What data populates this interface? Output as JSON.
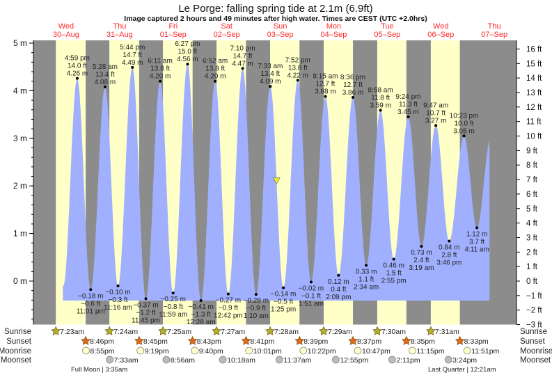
{
  "title": "Le Porge: falling  spring tide at 2.1m (6.9ft)",
  "subtitle": "Image captured 2 hours and 49 minutes after high water. Times are CEST (UTC +2.0hrs)",
  "colors": {
    "night": "#8c8c8c",
    "day": "#ffffc8",
    "tide": "#a0b0ff",
    "day_label": "#ff2a2a",
    "sunrise": "#b0b030",
    "sunset": "#e06820",
    "moonrise": "#ffffc8",
    "moonset": "#bcbcb4",
    "marker": "#e8e830"
  },
  "chart_data": {
    "type": "area",
    "title": "Le Porge: falling  spring tide at 2.1m (6.9ft)",
    "ylim_m": [
      -0.914,
      5
    ],
    "left_axis_ticks": [
      "5 m",
      "4 m",
      "3 m",
      "2 m",
      "1 m",
      "0 m"
    ],
    "left_axis_values": [
      5,
      4,
      3,
      2,
      1,
      0
    ],
    "right_axis_ticks": [
      "16 ft",
      "15 ft",
      "14 ft",
      "13 ft",
      "12 ft",
      "11 ft",
      "10 ft",
      "9 ft",
      "8 ft",
      "7 ft",
      "6 ft",
      "5 ft",
      "4 ft",
      "3 ft",
      "2 ft",
      "1 ft",
      "0 ft",
      "−1 ft",
      "−2 ft",
      "−3 ft"
    ],
    "right_axis_values": [
      16,
      15,
      14,
      13,
      12,
      11,
      10,
      9,
      8,
      7,
      6,
      5,
      4,
      3,
      2,
      1,
      0,
      -1,
      -2,
      -3
    ],
    "days": [
      {
        "name": "Wed",
        "date": "30–Aug"
      },
      {
        "name": "Thu",
        "date": "31–Aug"
      },
      {
        "name": "Fri",
        "date": "01–Sep"
      },
      {
        "name": "Sat",
        "date": "02–Sep"
      },
      {
        "name": "Sun",
        "date": "03–Sep"
      },
      {
        "name": "Mon",
        "date": "04–Sep"
      },
      {
        "name": "Tue",
        "date": "05–Sep"
      },
      {
        "name": "Wed",
        "date": "06–Sep"
      },
      {
        "name": "Thu",
        "date": "07–Sep"
      }
    ],
    "extremes": [
      {
        "type": "high",
        "day": 0,
        "time": "4:59 pm",
        "m": "4.26 m",
        "ft": "14.0 ft",
        "value": 4.26
      },
      {
        "type": "low",
        "day": 0,
        "time": "11:01 pm",
        "m": "−0.18 m",
        "ft": "−0.6 ft",
        "value": -0.18
      },
      {
        "type": "high",
        "day": 1,
        "time": "5:28 am",
        "m": "4.08 m",
        "ft": "13.4 ft",
        "value": 4.08
      },
      {
        "type": "low",
        "day": 1,
        "time": "11:16 am",
        "m": "−0.10 m",
        "ft": "−0.3 ft",
        "value": -0.1
      },
      {
        "type": "high",
        "day": 1,
        "time": "5:44 pm",
        "m": "4.49 m",
        "ft": "14.7 ft",
        "value": 4.49
      },
      {
        "type": "low",
        "day": 1,
        "time": "11:45 pm",
        "m": "−0.37 m",
        "ft": "−1.2 ft",
        "value": -0.37
      },
      {
        "type": "high",
        "day": 2,
        "time": "6:11 am",
        "m": "4.20 m",
        "ft": "13.8 ft",
        "value": 4.2
      },
      {
        "type": "low",
        "day": 2,
        "time": "11:59 am",
        "m": "−0.25 m",
        "ft": "−0.8 ft",
        "value": -0.25
      },
      {
        "type": "high",
        "day": 2,
        "time": "6:27 pm",
        "m": "4.56 m",
        "ft": "15.0 ft",
        "value": 4.56
      },
      {
        "type": "low",
        "day": 3,
        "time": "12:28 am",
        "m": "−0.41 m",
        "ft": "−1.3 ft",
        "value": -0.41
      },
      {
        "type": "high",
        "day": 3,
        "time": "6:52 am",
        "m": "4.20 m",
        "ft": "13.8 ft",
        "value": 4.2
      },
      {
        "type": "low",
        "day": 3,
        "time": "12:42 pm",
        "m": "−0.27 m",
        "ft": "−0.9 ft",
        "value": -0.27
      },
      {
        "type": "high",
        "day": 3,
        "time": "7:10 pm",
        "m": "4.47 m",
        "ft": "14.7 ft",
        "value": 4.47
      },
      {
        "type": "low",
        "day": 4,
        "time": "1:10 am",
        "m": "−0.28 m",
        "ft": "−0.9 ft",
        "value": -0.28
      },
      {
        "type": "high",
        "day": 4,
        "time": "7:33 am",
        "m": "4.09 m",
        "ft": "13.4 ft",
        "value": 4.09
      },
      {
        "type": "low",
        "day": 4,
        "time": "1:25 pm",
        "m": "−0.14 m",
        "ft": "−0.5 ft",
        "value": -0.14
      },
      {
        "type": "high",
        "day": 4,
        "time": "7:52 pm",
        "m": "4.22 m",
        "ft": "13.8 ft",
        "value": 4.22
      },
      {
        "type": "low",
        "day": 5,
        "time": "1:51 am",
        "m": "−0.02 m",
        "ft": "−0.1 ft",
        "value": -0.02
      },
      {
        "type": "high",
        "day": 5,
        "time": "8:15 am",
        "m": "3.88 m",
        "ft": "12.7 ft",
        "value": 3.88
      },
      {
        "type": "low",
        "day": 5,
        "time": "2:09 pm",
        "m": "0.12 m",
        "ft": "0.4 ft",
        "value": 0.12
      },
      {
        "type": "high",
        "day": 5,
        "time": "8:36 pm",
        "m": "3.86 m",
        "ft": "12.7 ft",
        "value": 3.86
      },
      {
        "type": "low",
        "day": 6,
        "time": "2:34 am",
        "m": "0.33 m",
        "ft": "1.1 ft",
        "value": 0.33
      },
      {
        "type": "high",
        "day": 6,
        "time": "8:58 am",
        "m": "3.59 m",
        "ft": "11.8 ft",
        "value": 3.59
      },
      {
        "type": "low",
        "day": 6,
        "time": "2:55 pm",
        "m": "0.46 m",
        "ft": "1.5 ft",
        "value": 0.46
      },
      {
        "type": "high",
        "day": 6,
        "time": "9:24 pm",
        "m": "3.45 m",
        "ft": "11.3 ft",
        "value": 3.45
      },
      {
        "type": "low",
        "day": 7,
        "time": "3:19 am",
        "m": "0.73 m",
        "ft": "2.4 ft",
        "value": 0.73
      },
      {
        "type": "high",
        "day": 7,
        "time": "9:47 am",
        "m": "3.27 m",
        "ft": "10.7 ft",
        "value": 3.27
      },
      {
        "type": "low",
        "day": 7,
        "time": "3:46 pm",
        "m": "0.84 m",
        "ft": "2.8 ft",
        "value": 0.84
      },
      {
        "type": "high",
        "day": 7,
        "time": "10:23 pm",
        "m": "3.05 m",
        "ft": "10.0 ft",
        "value": 3.05
      },
      {
        "type": "low",
        "day": 8,
        "time": "4:11 am",
        "m": "1.12 m",
        "ft": "3.7 ft",
        "value": 1.12
      }
    ],
    "current": {
      "day": 4,
      "time": "10:22 am",
      "value": 2.1
    }
  },
  "almanac": {
    "row_labels": {
      "sunrise": "Sunrise",
      "sunset": "Sunset",
      "moonrise": "Moonrise",
      "moonset": "Moonset"
    },
    "sunrise": [
      {
        "day": 0,
        "time": "7:23am"
      },
      {
        "day": 1,
        "time": "7:24am"
      },
      {
        "day": 2,
        "time": "7:25am"
      },
      {
        "day": 3,
        "time": "7:27am"
      },
      {
        "day": 4,
        "time": "7:28am"
      },
      {
        "day": 5,
        "time": "7:29am"
      },
      {
        "day": 6,
        "time": "7:30am"
      },
      {
        "day": 7,
        "time": "7:31am"
      }
    ],
    "sunset": [
      {
        "day": 0,
        "time": "8:46pm"
      },
      {
        "day": 1,
        "time": "8:45pm"
      },
      {
        "day": 2,
        "time": "8:43pm"
      },
      {
        "day": 3,
        "time": "8:41pm"
      },
      {
        "day": 4,
        "time": "8:39pm"
      },
      {
        "day": 5,
        "time": "8:37pm"
      },
      {
        "day": 6,
        "time": "8:35pm"
      },
      {
        "day": 7,
        "time": "8:33pm"
      }
    ],
    "moonrise": [
      {
        "day": 0,
        "time": "8:55pm"
      },
      {
        "day": 1,
        "time": "9:19pm"
      },
      {
        "day": 2,
        "time": "9:40pm"
      },
      {
        "day": 3,
        "time": "10:01pm"
      },
      {
        "day": 4,
        "time": "10:22pm"
      },
      {
        "day": 5,
        "time": "10:47pm"
      },
      {
        "day": 6,
        "time": "11:15pm"
      },
      {
        "day": 7,
        "time": "11:51pm"
      }
    ],
    "moonset": [
      {
        "day": 1,
        "time": "7:33am"
      },
      {
        "day": 2,
        "time": "8:56am"
      },
      {
        "day": 3,
        "time": "10:18am"
      },
      {
        "day": 4,
        "time": "11:37am"
      },
      {
        "day": 5,
        "time": "12:55pm"
      },
      {
        "day": 6,
        "time": "2:11pm"
      },
      {
        "day": 7,
        "time": "3:24pm"
      }
    ],
    "phases": [
      "Full Moon | 3:35am",
      "Last Quarter | 12:21am"
    ]
  }
}
